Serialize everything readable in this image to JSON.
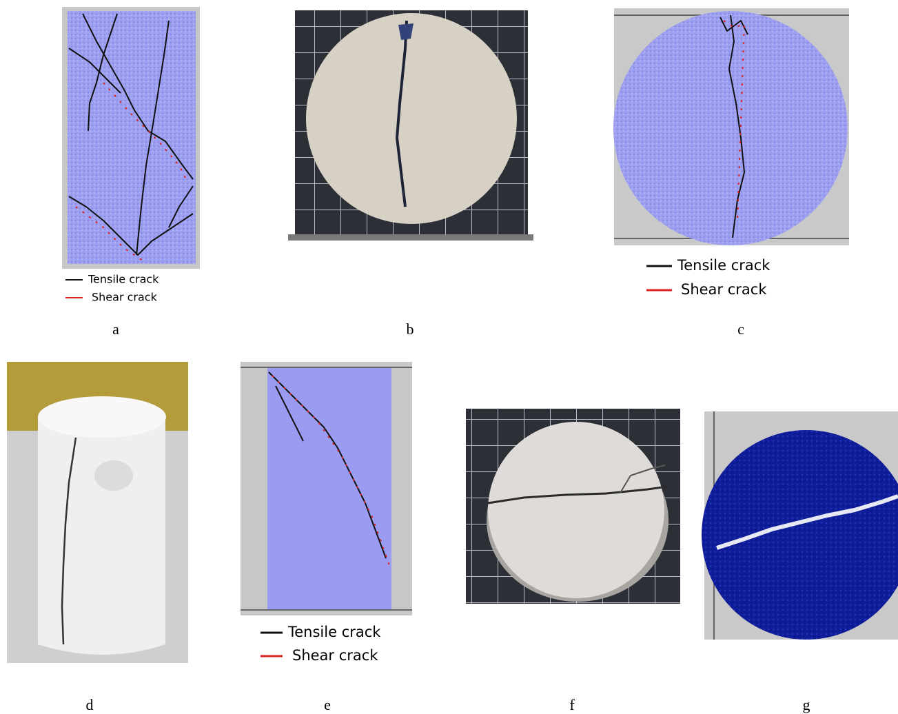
{
  "panels": [
    {
      "label": "a",
      "legend": [
        "Tensile crack",
        "Shear crack"
      ]
    },
    {
      "label": "b"
    },
    {
      "label": "c",
      "legend": [
        "Tensile crack",
        "Shear crack"
      ]
    },
    {
      "label": "d"
    },
    {
      "label": "e",
      "legend": [
        "Tensile crack",
        "Shear crack"
      ]
    },
    {
      "label": "f"
    },
    {
      "label": "g"
    }
  ]
}
